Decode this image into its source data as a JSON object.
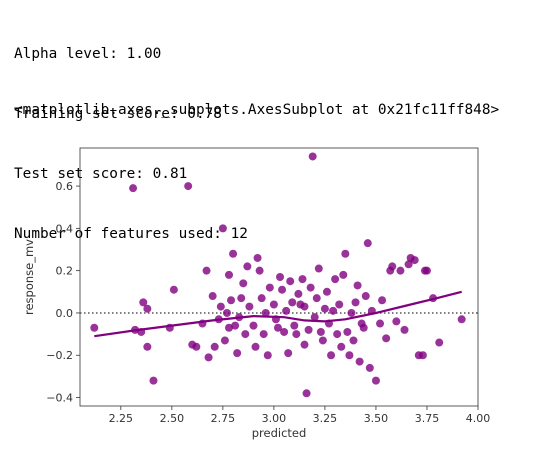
{
  "output_lines": [
    "Alpha level: 1.00",
    "Training set score: 0.78",
    "Test set score: 0.81",
    "Number of features used: 12"
  ],
  "repr_text": "<matplotlib.axes._subplots.AxesSubplot at 0x21fc11ff848>",
  "chart_data": {
    "type": "scatter",
    "title": "",
    "xlabel": "predicted",
    "ylabel": "response_mv",
    "xlim": [
      2.05,
      4.0
    ],
    "ylim": [
      -0.44,
      0.78
    ],
    "xticks": [
      2.25,
      2.5,
      2.75,
      3.0,
      3.25,
      3.5,
      3.75,
      4.0
    ],
    "xtick_labels": [
      "2.25",
      "2.50",
      "2.75",
      "3.00",
      "3.25",
      "3.50",
      "3.75",
      "4.00"
    ],
    "yticks": [
      -0.4,
      -0.2,
      0.0,
      0.2,
      0.4,
      0.6
    ],
    "ytick_labels": [
      "−0.4",
      "−0.2",
      "0.0",
      "0.2",
      "0.4",
      "0.6"
    ],
    "marker_color": "#800080",
    "reference_line": {
      "y": 0.0,
      "style": "dotted",
      "color": "#555555"
    },
    "lowess_curve": [
      [
        2.12,
        -0.11
      ],
      [
        2.3,
        -0.085
      ],
      [
        2.5,
        -0.06
      ],
      [
        2.7,
        -0.035
      ],
      [
        2.9,
        -0.015
      ],
      [
        3.05,
        -0.02
      ],
      [
        3.15,
        -0.035
      ],
      [
        3.25,
        -0.04
      ],
      [
        3.35,
        -0.03
      ],
      [
        3.5,
        0.0
      ],
      [
        3.65,
        0.035
      ],
      [
        3.8,
        0.07
      ],
      [
        3.92,
        0.1
      ]
    ],
    "points": [
      [
        2.12,
        -0.07
      ],
      [
        2.31,
        0.59
      ],
      [
        2.32,
        -0.08
      ],
      [
        2.35,
        -0.09
      ],
      [
        2.36,
        0.05
      ],
      [
        2.38,
        0.02
      ],
      [
        2.38,
        -0.16
      ],
      [
        2.41,
        -0.32
      ],
      [
        2.49,
        -0.07
      ],
      [
        2.51,
        0.11
      ],
      [
        2.58,
        0.6
      ],
      [
        2.6,
        -0.15
      ],
      [
        2.62,
        -0.16
      ],
      [
        2.65,
        -0.05
      ],
      [
        2.67,
        0.2
      ],
      [
        2.68,
        -0.21
      ],
      [
        2.7,
        0.08
      ],
      [
        2.71,
        -0.16
      ],
      [
        2.73,
        -0.03
      ],
      [
        2.74,
        0.03
      ],
      [
        2.75,
        0.4
      ],
      [
        2.76,
        -0.13
      ],
      [
        2.77,
        0.0
      ],
      [
        2.78,
        -0.07
      ],
      [
        2.78,
        0.18
      ],
      [
        2.79,
        0.06
      ],
      [
        2.8,
        0.28
      ],
      [
        2.81,
        -0.06
      ],
      [
        2.82,
        -0.19
      ],
      [
        2.83,
        -0.02
      ],
      [
        2.84,
        0.07
      ],
      [
        2.85,
        0.14
      ],
      [
        2.86,
        -0.1
      ],
      [
        2.87,
        0.22
      ],
      [
        2.88,
        0.03
      ],
      [
        2.9,
        -0.06
      ],
      [
        2.91,
        -0.16
      ],
      [
        2.92,
        0.26
      ],
      [
        2.93,
        0.2
      ],
      [
        2.94,
        0.07
      ],
      [
        2.95,
        -0.1
      ],
      [
        2.96,
        0.0
      ],
      [
        2.97,
        -0.2
      ],
      [
        2.98,
        0.12
      ],
      [
        3.0,
        0.04
      ],
      [
        3.01,
        -0.03
      ],
      [
        3.02,
        -0.07
      ],
      [
        3.03,
        0.17
      ],
      [
        3.04,
        0.11
      ],
      [
        3.05,
        -0.09
      ],
      [
        3.06,
        0.01
      ],
      [
        3.07,
        -0.19
      ],
      [
        3.08,
        0.15
      ],
      [
        3.09,
        0.05
      ],
      [
        3.1,
        -0.06
      ],
      [
        3.11,
        -0.1
      ],
      [
        3.12,
        0.09
      ],
      [
        3.13,
        0.04
      ],
      [
        3.14,
        0.16
      ],
      [
        3.15,
        -0.15
      ],
      [
        3.15,
        0.03
      ],
      [
        3.16,
        -0.38
      ],
      [
        3.17,
        -0.08
      ],
      [
        3.18,
        0.12
      ],
      [
        3.19,
        0.74
      ],
      [
        3.2,
        -0.02
      ],
      [
        3.21,
        0.07
      ],
      [
        3.22,
        0.21
      ],
      [
        3.23,
        -0.09
      ],
      [
        3.24,
        -0.13
      ],
      [
        3.25,
        0.02
      ],
      [
        3.26,
        0.1
      ],
      [
        3.27,
        -0.05
      ],
      [
        3.28,
        -0.2
      ],
      [
        3.29,
        0.01
      ],
      [
        3.3,
        0.16
      ],
      [
        3.31,
        -0.1
      ],
      [
        3.32,
        0.04
      ],
      [
        3.33,
        -0.16
      ],
      [
        3.34,
        0.18
      ],
      [
        3.35,
        0.28
      ],
      [
        3.36,
        -0.09
      ],
      [
        3.37,
        -0.2
      ],
      [
        3.38,
        0.0
      ],
      [
        3.39,
        -0.13
      ],
      [
        3.4,
        0.05
      ],
      [
        3.41,
        0.13
      ],
      [
        3.42,
        -0.23
      ],
      [
        3.43,
        -0.05
      ],
      [
        3.44,
        -0.07
      ],
      [
        3.45,
        0.08
      ],
      [
        3.46,
        0.33
      ],
      [
        3.47,
        -0.26
      ],
      [
        3.48,
        0.01
      ],
      [
        3.5,
        -0.32
      ],
      [
        3.52,
        -0.05
      ],
      [
        3.53,
        0.06
      ],
      [
        3.55,
        -0.12
      ],
      [
        3.57,
        0.2
      ],
      [
        3.58,
        0.22
      ],
      [
        3.6,
        -0.04
      ],
      [
        3.62,
        0.2
      ],
      [
        3.64,
        -0.08
      ],
      [
        3.66,
        0.23
      ],
      [
        3.67,
        0.26
      ],
      [
        3.69,
        0.25
      ],
      [
        3.71,
        -0.2
      ],
      [
        3.73,
        -0.2
      ],
      [
        3.74,
        0.2
      ],
      [
        3.75,
        0.2
      ],
      [
        3.78,
        0.07
      ],
      [
        3.81,
        -0.14
      ],
      [
        3.92,
        -0.03
      ]
    ]
  }
}
